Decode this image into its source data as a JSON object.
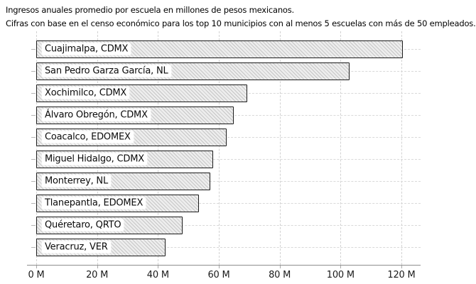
{
  "header": {
    "title": "Ingresos anuales promedio por escuela en millones de pesos mexicanos.",
    "subtitle": "Cifras con base en el censo económico para los top 10 municipios con al menos 5 escuelas con más de 50 empleados."
  },
  "chart_data": {
    "type": "bar",
    "orientation": "horizontal",
    "title": "Ingresos anuales promedio por escuela en millones de pesos mexicanos.",
    "subtitle": "Cifras con base en el censo económico para los top 10 municipios con al menos 5 escuelas con más de 50 empleados.",
    "categories": [
      "Cuajimalpa, CDMX",
      "San Pedro Garza García, NL",
      "Xochimilco, CDMX",
      "Álvaro Obregón, CDMX",
      "Coacalco, EDOMEX",
      "Miguel Hidalgo, CDMX",
      "Monterrey, NL",
      "Tlanepantla, EDOMEX",
      "Quéretaro, QRTO",
      "Veracruz, VER"
    ],
    "values": [
      120.4,
      102.9,
      69.4,
      64.8,
      62.6,
      58.1,
      57.2,
      53.5,
      48.1,
      42.5
    ],
    "unit": "M",
    "xlabel": "",
    "ylabel": "",
    "xlim": [
      0,
      126
    ],
    "x_ticks": [
      0,
      20,
      40,
      60,
      80,
      100,
      120
    ],
    "x_tick_labels": [
      "0 M",
      "20 M",
      "40 M",
      "60 M",
      "80 M",
      "100 M",
      "120 M"
    ],
    "grid": true,
    "legend": "none",
    "style": "xkcd-hatched-bars",
    "colors": {
      "bar_fill": "#ededed",
      "bar_hatch": "#c6c6c6",
      "bar_border": "#1c1c1c",
      "label_background": "#ffffff",
      "axis_line": "#8f8f8f",
      "gridline": "#d5d5d5",
      "text": "#111111",
      "background": "#ffffff"
    }
  }
}
